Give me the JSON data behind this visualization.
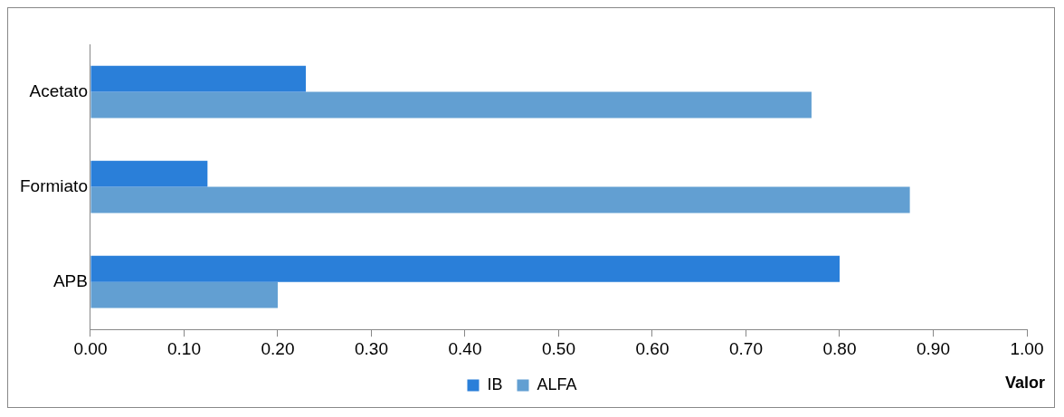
{
  "chart_data": {
    "type": "bar",
    "orientation": "horizontal",
    "categories": [
      "Acetato",
      "Formiato",
      "APB"
    ],
    "series": [
      {
        "name": "IB",
        "color": "#2a7fd9",
        "values": [
          0.23,
          0.125,
          0.8
        ]
      },
      {
        "name": "ALFA",
        "color": "#629fd2",
        "values": [
          0.77,
          0.875,
          0.2
        ]
      }
    ],
    "xlabel": "Valor",
    "xlim": [
      0,
      1
    ],
    "xticks": [
      {
        "value": 0,
        "label": "0.00"
      },
      {
        "value": 0.1,
        "label": "0.10"
      },
      {
        "value": 0.2,
        "label": "0.20"
      },
      {
        "value": 0.3,
        "label": "0.30"
      },
      {
        "value": 0.4,
        "label": "0.40"
      },
      {
        "value": 0.5,
        "label": "0.50"
      },
      {
        "value": 0.6,
        "label": "0.60"
      },
      {
        "value": 0.7,
        "label": "0.70"
      },
      {
        "value": 0.8,
        "label": "0.80"
      },
      {
        "value": 0.9,
        "label": "0.90"
      },
      {
        "value": 1,
        "label": "1.00"
      }
    ],
    "grid": false,
    "legend": "bottom"
  }
}
